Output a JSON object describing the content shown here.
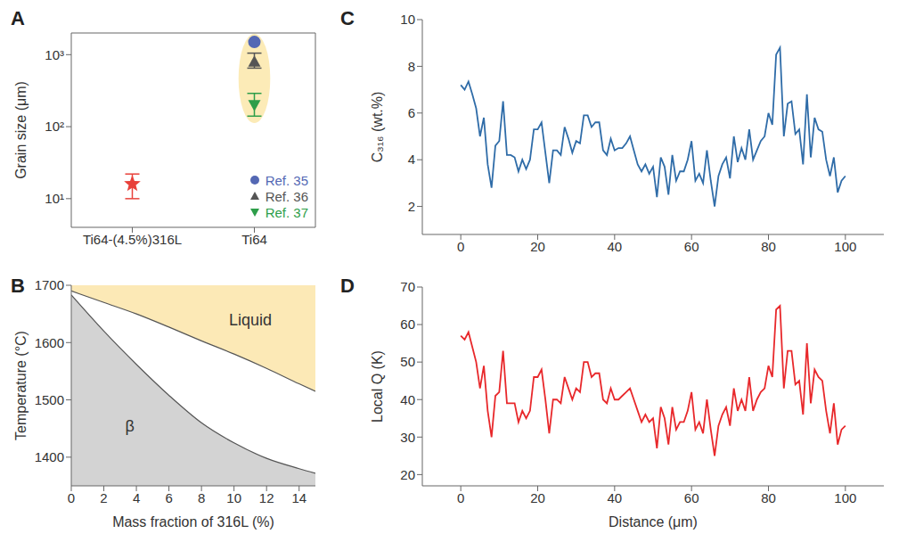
{
  "chart_data": [
    {
      "type": "scatter",
      "title": "A",
      "categories": [
        "Ti64-(4.5%)316L",
        "Ti64"
      ],
      "y_label": "Grain size (μm)",
      "log": "y",
      "ylim": [
        4,
        2000
      ],
      "yticks": [
        {
          "value": 10,
          "label": "10¹"
        },
        {
          "value": 100,
          "label": "10²"
        },
        {
          "value": 1000,
          "label": "10³"
        }
      ],
      "legend": "lower right",
      "series": [
        {
          "color": "#e8413a",
          "marker": "star",
          "values": [
            16,
            null
          ],
          "errors": [
            [
              10,
              22
            ],
            null
          ]
        },
        {
          "name": "Ref. 35",
          "color": "#5468b4",
          "marker": "circle",
          "values": [
            null,
            1500
          ]
        },
        {
          "name": "Ref. 36",
          "color": "#555555",
          "marker": "triangle",
          "values": [
            null,
            800
          ],
          "errors": [
            null,
            [
              650,
              1050
            ]
          ]
        },
        {
          "name": "Ref. 37",
          "color": "#2e9e4a",
          "marker": "triangle_down",
          "values": [
            null,
            200
          ],
          "errors": [
            null,
            [
              140,
              290
            ]
          ]
        }
      ]
    },
    {
      "type": "area",
      "title": "B",
      "x_label": "Mass fraction of 316L (%)",
      "y_label": "Temperature (°C)",
      "xlim": [
        0,
        15
      ],
      "xticks": [
        0,
        2,
        4,
        6,
        8,
        10,
        12,
        14
      ],
      "ylim": [
        1350,
        1700
      ],
      "yticks": [
        1400,
        1500,
        1600,
        1700
      ],
      "x": [
        0,
        2,
        4,
        6,
        8,
        10,
        12,
        14,
        15
      ],
      "series": [
        {
          "color": "#fce9b6",
          "values": [
            1690,
            1670,
            1650,
            1627,
            1603,
            1580,
            1555,
            1528,
            1515
          ]
        },
        {
          "color": "#d3d3d3",
          "values": [
            1683,
            1620,
            1562,
            1508,
            1460,
            1425,
            1398,
            1380,
            1372
          ]
        }
      ],
      "annotations": [
        {
          "text": "Liquid",
          "x": 11,
          "y": 1640
        },
        {
          "text": "β",
          "x": 3.6,
          "y": 1455
        }
      ]
    },
    {
      "type": "line",
      "title": "C",
      "y_label": "C₃₁₆ (wt.%)",
      "xlim": [
        -10,
        110
      ],
      "xticks": [
        0,
        20,
        40,
        60,
        80,
        100
      ],
      "ylim": [
        0.8,
        10
      ],
      "yticks": [
        2,
        4,
        6,
        8,
        10
      ],
      "x": [
        0,
        1,
        2,
        3,
        4,
        5,
        6,
        7,
        8,
        9,
        10,
        11,
        12,
        13,
        14,
        15,
        16,
        17,
        18,
        19,
        20,
        21,
        22,
        23,
        24,
        25,
        26,
        27,
        28,
        29,
        30,
        31,
        32,
        33,
        34,
        35,
        36,
        37,
        38,
        39,
        40,
        41,
        42,
        43,
        44,
        45,
        46,
        47,
        48,
        49,
        50,
        51,
        52,
        53,
        54,
        55,
        56,
        57,
        58,
        59,
        60,
        61,
        62,
        63,
        64,
        65,
        66,
        67,
        68,
        69,
        70,
        71,
        72,
        73,
        74,
        75,
        76,
        77,
        78,
        79,
        80,
        81,
        82,
        83,
        84,
        85,
        86,
        87,
        88,
        89,
        90,
        91,
        92,
        93,
        94,
        95,
        96,
        97,
        98,
        99,
        100
      ],
      "series": [
        {
          "color": "#2f6ca8",
          "values": [
            7.2,
            7.0,
            7.35,
            6.8,
            6.2,
            5.0,
            5.8,
            3.8,
            2.8,
            4.6,
            4.8,
            6.5,
            4.2,
            4.2,
            4.1,
            3.5,
            4.0,
            3.6,
            4.0,
            5.3,
            5.3,
            5.6,
            4.3,
            3.0,
            4.4,
            4.4,
            4.2,
            5.4,
            4.9,
            4.3,
            4.8,
            4.7,
            5.9,
            5.9,
            5.4,
            5.6,
            5.6,
            4.4,
            4.2,
            4.9,
            4.4,
            4.5,
            4.5,
            4.7,
            5.0,
            4.4,
            3.8,
            3.5,
            3.8,
            3.4,
            3.7,
            2.4,
            4.1,
            3.7,
            2.5,
            4.2,
            3.1,
            3.5,
            3.5,
            4.0,
            4.8,
            3.1,
            3.4,
            3.0,
            4.4,
            3.1,
            2.0,
            3.3,
            3.8,
            4.1,
            3.2,
            5.0,
            3.9,
            4.5,
            4.0,
            5.3,
            4.0,
            4.4,
            4.8,
            5.0,
            6.0,
            5.5,
            8.5,
            8.8,
            5.0,
            6.4,
            6.5,
            5.1,
            5.3,
            3.8,
            6.8,
            4.1,
            5.8,
            5.3,
            5.2,
            4.0,
            3.3,
            4.1,
            2.6,
            3.1,
            3.3
          ]
        }
      ]
    },
    {
      "type": "line",
      "title": "D",
      "x_label": "Distance (μm)",
      "y_label": "Local Q (K)",
      "xlim": [
        -10,
        110
      ],
      "xticks": [
        0,
        20,
        40,
        60,
        80,
        100
      ],
      "ylim": [
        17,
        70
      ],
      "yticks": [
        20,
        30,
        40,
        50,
        60,
        70
      ],
      "x": [
        0,
        1,
        2,
        3,
        4,
        5,
        6,
        7,
        8,
        9,
        10,
        11,
        12,
        13,
        14,
        15,
        16,
        17,
        18,
        19,
        20,
        21,
        22,
        23,
        24,
        25,
        26,
        27,
        28,
        29,
        30,
        31,
        32,
        33,
        34,
        35,
        36,
        37,
        38,
        39,
        40,
        41,
        42,
        43,
        44,
        45,
        46,
        47,
        48,
        49,
        50,
        51,
        52,
        53,
        54,
        55,
        56,
        57,
        58,
        59,
        60,
        61,
        62,
        63,
        64,
        65,
        66,
        67,
        68,
        69,
        70,
        71,
        72,
        73,
        74,
        75,
        76,
        77,
        78,
        79,
        80,
        81,
        82,
        83,
        84,
        85,
        86,
        87,
        88,
        89,
        90,
        91,
        92,
        93,
        94,
        95,
        96,
        97,
        98,
        99,
        100
      ],
      "series": [
        {
          "color": "#e8282b",
          "values": [
            57,
            56,
            58,
            54,
            50,
            43,
            49,
            37,
            30,
            41,
            42,
            53,
            39,
            39,
            39,
            34,
            37,
            35,
            37,
            46,
            46,
            48,
            40,
            31,
            40,
            40,
            39,
            46,
            43,
            40,
            43,
            42,
            50,
            50,
            46,
            47,
            47,
            40,
            39,
            43,
            40,
            40,
            41,
            42,
            43,
            40,
            37,
            34,
            36,
            34,
            35,
            27,
            38,
            35,
            28,
            38,
            32,
            34,
            34,
            37,
            42,
            32,
            34,
            31,
            40,
            32,
            25,
            33,
            36,
            38,
            33,
            43,
            37,
            40,
            37,
            46,
            37,
            40,
            42,
            43,
            49,
            46,
            64,
            65,
            43,
            53,
            53,
            44,
            45,
            36,
            55,
            39,
            48,
            46,
            45,
            37,
            31,
            39,
            28,
            32,
            33
          ]
        }
      ]
    }
  ]
}
